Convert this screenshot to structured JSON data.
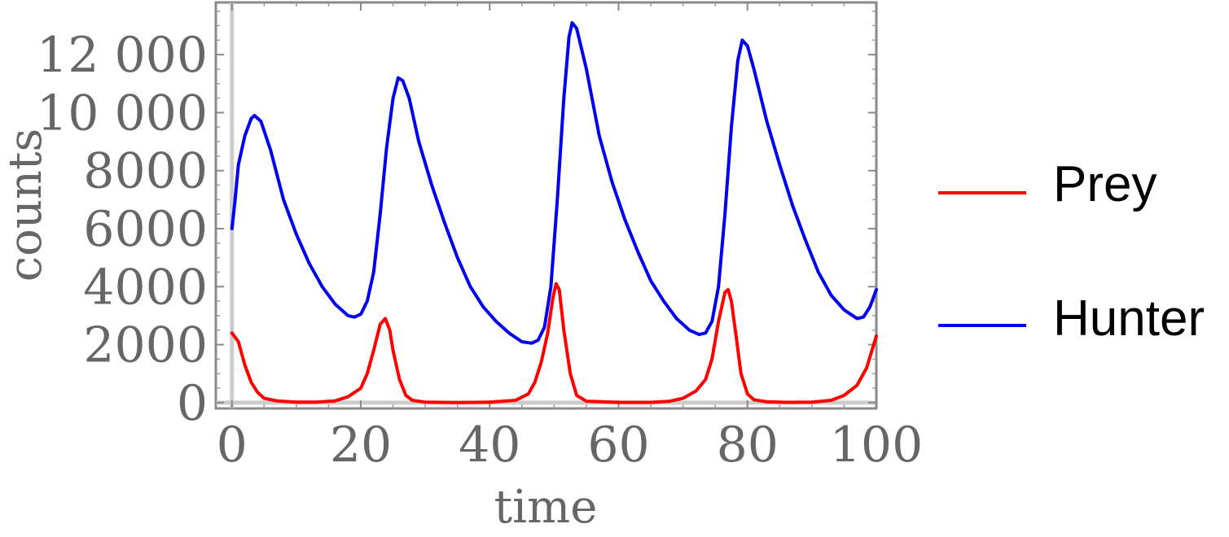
{
  "chart_data": {
    "type": "line",
    "title": "",
    "xlabel": "time",
    "ylabel": "counts",
    "xlim": [
      -2.5,
      100
    ],
    "ylim": [
      -200,
      13800
    ],
    "xticks": [
      0,
      20,
      40,
      60,
      80,
      100
    ],
    "yticks": [
      0,
      2000,
      4000,
      6000,
      8000,
      10000,
      12000
    ],
    "xtick_labels": [
      "0",
      "20",
      "40",
      "60",
      "80",
      "100"
    ],
    "ytick_labels": [
      "0",
      "2000",
      "4000",
      "6000",
      "8000",
      "10 000",
      "12 000"
    ],
    "legend_position": "right",
    "series": [
      {
        "name": "Prey",
        "color": "#ff0000",
        "points": [
          [
            0,
            2400
          ],
          [
            1,
            2100
          ],
          [
            2,
            1300
          ],
          [
            3,
            700
          ],
          [
            4,
            350
          ],
          [
            5,
            150
          ],
          [
            7,
            60
          ],
          [
            10,
            20
          ],
          [
            13,
            15
          ],
          [
            16,
            60
          ],
          [
            18,
            200
          ],
          [
            20,
            500
          ],
          [
            21,
            1000
          ],
          [
            22,
            1800
          ],
          [
            23,
            2700
          ],
          [
            23.8,
            2900
          ],
          [
            24.5,
            2500
          ],
          [
            25,
            1800
          ],
          [
            26,
            800
          ],
          [
            27,
            250
          ],
          [
            28,
            80
          ],
          [
            30,
            20
          ],
          [
            35,
            5
          ],
          [
            40,
            15
          ],
          [
            44,
            80
          ],
          [
            46,
            300
          ],
          [
            47,
            700
          ],
          [
            48,
            1400
          ],
          [
            49,
            2400
          ],
          [
            49.8,
            3600
          ],
          [
            50.3,
            4100
          ],
          [
            50.8,
            3900
          ],
          [
            51.5,
            2500
          ],
          [
            52.5,
            1000
          ],
          [
            53.5,
            250
          ],
          [
            55,
            50
          ],
          [
            60,
            10
          ],
          [
            65,
            10
          ],
          [
            68,
            50
          ],
          [
            70,
            150
          ],
          [
            72,
            400
          ],
          [
            73.5,
            800
          ],
          [
            74.5,
            1500
          ],
          [
            75.5,
            2800
          ],
          [
            76.5,
            3800
          ],
          [
            77,
            3900
          ],
          [
            77.5,
            3500
          ],
          [
            78.3,
            2200
          ],
          [
            79,
            1000
          ],
          [
            80,
            300
          ],
          [
            81,
            100
          ],
          [
            83,
            30
          ],
          [
            86,
            10
          ],
          [
            90,
            20
          ],
          [
            93,
            80
          ],
          [
            95,
            250
          ],
          [
            97,
            600
          ],
          [
            98.5,
            1200
          ],
          [
            100,
            2300
          ]
        ]
      },
      {
        "name": "Hunter",
        "color": "#0000ee",
        "points": [
          [
            0,
            6000
          ],
          [
            0.5,
            7000
          ],
          [
            1,
            8200
          ],
          [
            2,
            9200
          ],
          [
            3,
            9800
          ],
          [
            3.5,
            9900
          ],
          [
            4.5,
            9700
          ],
          [
            6,
            8700
          ],
          [
            8,
            7000
          ],
          [
            10,
            5800
          ],
          [
            12,
            4800
          ],
          [
            14,
            4000
          ],
          [
            16,
            3400
          ],
          [
            18,
            3000
          ],
          [
            19,
            2950
          ],
          [
            20,
            3050
          ],
          [
            21,
            3500
          ],
          [
            22,
            4500
          ],
          [
            23,
            6500
          ],
          [
            24,
            8800
          ],
          [
            25,
            10500
          ],
          [
            25.8,
            11200
          ],
          [
            26.5,
            11100
          ],
          [
            27.5,
            10500
          ],
          [
            29,
            9000
          ],
          [
            31,
            7500
          ],
          [
            33,
            6200
          ],
          [
            35,
            5000
          ],
          [
            37,
            4000
          ],
          [
            39,
            3300
          ],
          [
            41,
            2800
          ],
          [
            43,
            2400
          ],
          [
            45,
            2100
          ],
          [
            46.5,
            2050
          ],
          [
            47.5,
            2150
          ],
          [
            48.5,
            2600
          ],
          [
            49.5,
            4000
          ],
          [
            50.5,
            7000
          ],
          [
            51.5,
            10500
          ],
          [
            52.3,
            12600
          ],
          [
            52.8,
            13100
          ],
          [
            53.5,
            12900
          ],
          [
            55,
            11500
          ],
          [
            57,
            9200
          ],
          [
            59,
            7600
          ],
          [
            61,
            6300
          ],
          [
            63,
            5200
          ],
          [
            65,
            4200
          ],
          [
            67,
            3500
          ],
          [
            69,
            2900
          ],
          [
            71,
            2500
          ],
          [
            72.5,
            2350
          ],
          [
            73.5,
            2400
          ],
          [
            74.5,
            2800
          ],
          [
            75.5,
            4000
          ],
          [
            76.5,
            6500
          ],
          [
            77.5,
            9500
          ],
          [
            78.5,
            11800
          ],
          [
            79.2,
            12500
          ],
          [
            80,
            12300
          ],
          [
            81,
            11500
          ],
          [
            83,
            9700
          ],
          [
            85,
            8200
          ],
          [
            87,
            6800
          ],
          [
            89,
            5600
          ],
          [
            91,
            4500
          ],
          [
            93,
            3700
          ],
          [
            95,
            3200
          ],
          [
            97,
            2900
          ],
          [
            98,
            2950
          ],
          [
            99,
            3300
          ],
          [
            100,
            3900
          ]
        ]
      }
    ]
  }
}
